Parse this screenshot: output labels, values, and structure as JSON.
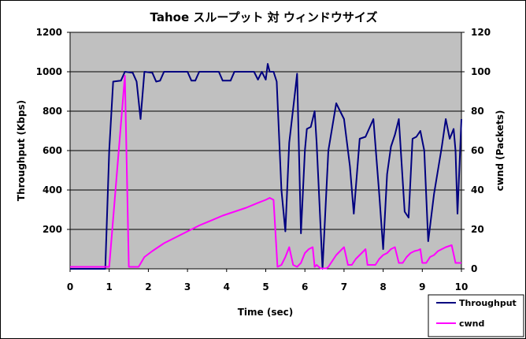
{
  "chart_data": {
    "type": "line",
    "title": "Tahoe スループット 対 ウィンドウサイズ",
    "xlabel": "Time (sec)",
    "ylabel": "Throughput (Kbps)",
    "y2label": "cwnd (Packets)",
    "xlim": [
      0,
      10
    ],
    "ylim": [
      0,
      1200
    ],
    "y2lim": [
      0,
      120
    ],
    "x_ticks": [
      "0",
      "1",
      "2",
      "3",
      "4",
      "5",
      "6",
      "7",
      "8",
      "9",
      "10"
    ],
    "y_ticks": [
      "200",
      "400",
      "600",
      "800",
      "1000",
      "1200"
    ],
    "y2_ticks": [
      "0",
      "20",
      "40",
      "60",
      "80",
      "100",
      "120"
    ],
    "grid": "horizontal",
    "plot_background": "#c0c0c0",
    "legend_placement": "bottom-right",
    "series": [
      {
        "name": "Throughput",
        "axis": "left",
        "color": "#000080",
        "points": [
          [
            0,
            0
          ],
          [
            0.9,
            0
          ],
          [
            1.0,
            600
          ],
          [
            1.1,
            950
          ],
          [
            1.3,
            955
          ],
          [
            1.4,
            1000
          ],
          [
            1.6,
            995
          ],
          [
            1.7,
            950
          ],
          [
            1.8,
            760
          ],
          [
            1.9,
            1000
          ],
          [
            2.1,
            995
          ],
          [
            2.2,
            950
          ],
          [
            2.3,
            955
          ],
          [
            2.4,
            1000
          ],
          [
            2.6,
            1000
          ],
          [
            3.0,
            1000
          ],
          [
            3.1,
            955
          ],
          [
            3.2,
            955
          ],
          [
            3.3,
            1000
          ],
          [
            3.5,
            1000
          ],
          [
            3.8,
            1000
          ],
          [
            3.9,
            955
          ],
          [
            4.1,
            955
          ],
          [
            4.2,
            1000
          ],
          [
            4.5,
            1000
          ],
          [
            4.7,
            1000
          ],
          [
            4.8,
            960
          ],
          [
            4.9,
            1000
          ],
          [
            5.0,
            960
          ],
          [
            5.05,
            1040
          ],
          [
            5.1,
            1000
          ],
          [
            5.2,
            1000
          ],
          [
            5.28,
            950
          ],
          [
            5.4,
            400
          ],
          [
            5.5,
            190
          ],
          [
            5.6,
            640
          ],
          [
            5.75,
            900
          ],
          [
            5.8,
            990
          ],
          [
            5.9,
            180
          ],
          [
            6.0,
            600
          ],
          [
            6.05,
            710
          ],
          [
            6.15,
            720
          ],
          [
            6.25,
            800
          ],
          [
            6.3,
            640
          ],
          [
            6.45,
            0
          ],
          [
            6.6,
            600
          ],
          [
            6.8,
            840
          ],
          [
            6.9,
            800
          ],
          [
            7.0,
            760
          ],
          [
            7.15,
            520
          ],
          [
            7.25,
            280
          ],
          [
            7.4,
            660
          ],
          [
            7.55,
            670
          ],
          [
            7.75,
            760
          ],
          [
            7.9,
            380
          ],
          [
            8.0,
            100
          ],
          [
            8.1,
            480
          ],
          [
            8.2,
            620
          ],
          [
            8.3,
            680
          ],
          [
            8.4,
            760
          ],
          [
            8.55,
            290
          ],
          [
            8.65,
            260
          ],
          [
            8.75,
            660
          ],
          [
            8.85,
            670
          ],
          [
            8.95,
            700
          ],
          [
            9.05,
            600
          ],
          [
            9.15,
            140
          ],
          [
            9.3,
            380
          ],
          [
            9.5,
            620
          ],
          [
            9.6,
            760
          ],
          [
            9.7,
            660
          ],
          [
            9.8,
            710
          ],
          [
            9.85,
            600
          ],
          [
            9.9,
            280
          ],
          [
            10.0,
            760
          ]
        ]
      },
      {
        "name": "cwnd",
        "axis": "right",
        "color": "#ff00ff",
        "points": [
          [
            0,
            1
          ],
          [
            0.9,
            1
          ],
          [
            1.0,
            1
          ],
          [
            1.4,
            98
          ],
          [
            1.5,
            1
          ],
          [
            1.75,
            1
          ],
          [
            1.9,
            6
          ],
          [
            2.1,
            9
          ],
          [
            2.4,
            13
          ],
          [
            2.7,
            16
          ],
          [
            3.0,
            19
          ],
          [
            3.3,
            22
          ],
          [
            3.6,
            24.5
          ],
          [
            3.9,
            27
          ],
          [
            4.2,
            29
          ],
          [
            4.5,
            31
          ],
          [
            4.8,
            33.5
          ],
          [
            5.0,
            35
          ],
          [
            5.1,
            36
          ],
          [
            5.2,
            35
          ],
          [
            5.3,
            1
          ],
          [
            5.4,
            2
          ],
          [
            5.5,
            6
          ],
          [
            5.6,
            11
          ],
          [
            5.7,
            2
          ],
          [
            5.8,
            1
          ],
          [
            5.9,
            3
          ],
          [
            6.0,
            8
          ],
          [
            6.1,
            10
          ],
          [
            6.2,
            11
          ],
          [
            6.25,
            1
          ],
          [
            6.3,
            2
          ],
          [
            6.4,
            0.2
          ],
          [
            6.55,
            0.2
          ],
          [
            6.6,
            1
          ],
          [
            6.7,
            4
          ],
          [
            6.8,
            7
          ],
          [
            6.9,
            9
          ],
          [
            6.95,
            10
          ],
          [
            7.0,
            11
          ],
          [
            7.1,
            2
          ],
          [
            7.2,
            2
          ],
          [
            7.3,
            5
          ],
          [
            7.4,
            7
          ],
          [
            7.5,
            9
          ],
          [
            7.55,
            10
          ],
          [
            7.6,
            2
          ],
          [
            7.8,
            2
          ],
          [
            7.9,
            5
          ],
          [
            8.0,
            7
          ],
          [
            8.1,
            8
          ],
          [
            8.2,
            10
          ],
          [
            8.3,
            11
          ],
          [
            8.4,
            3
          ],
          [
            8.5,
            3
          ],
          [
            8.6,
            6
          ],
          [
            8.7,
            8
          ],
          [
            8.8,
            9
          ],
          [
            8.9,
            9.5
          ],
          [
            8.95,
            10
          ],
          [
            9.0,
            3
          ],
          [
            9.1,
            3
          ],
          [
            9.2,
            6
          ],
          [
            9.3,
            7
          ],
          [
            9.4,
            9
          ],
          [
            9.5,
            10
          ],
          [
            9.6,
            11
          ],
          [
            9.75,
            12
          ],
          [
            9.85,
            3
          ],
          [
            9.9,
            3
          ],
          [
            10.0,
            3
          ]
        ]
      }
    ]
  }
}
